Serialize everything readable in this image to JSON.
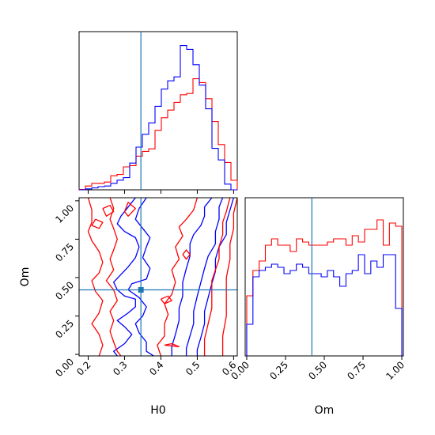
{
  "chart_data": [
    {
      "type": "histogram",
      "panel": "marginal-H0",
      "xlim": [
        0.175,
        0.61
      ],
      "truth": 0.345,
      "bin_edges": [
        0.175,
        0.1924,
        0.2098,
        0.2272,
        0.2446,
        0.262,
        0.2794,
        0.2968,
        0.3142,
        0.3316,
        0.349,
        0.3664,
        0.3838,
        0.4012,
        0.4186,
        0.436,
        0.4534,
        0.4708,
        0.4882,
        0.5056,
        0.523,
        0.5404,
        0.5578,
        0.5752,
        0.5926,
        0.61
      ],
      "series": [
        {
          "color": "#ff0000",
          "counts": [
            0.2,
            2.4,
            4.1,
            4.1,
            4.9,
            8.9,
            9.7,
            14.5,
            15.3,
            21.3,
            24.3,
            25.9,
            37.6,
            45.6,
            50.4,
            55.3,
            60.1,
            60.9,
            70.2,
            67.8,
            57.6,
            43.2,
            28.6,
            17.3,
            6.0
          ],
          "note_scale": "relative"
        },
        {
          "color": "#0000ff",
          "counts": [
            0,
            0.6,
            1.2,
            2.0,
            2.4,
            4.1,
            6.1,
            7.7,
            16.9,
            27.0,
            35.1,
            42.3,
            52.8,
            63.7,
            68.9,
            71.4,
            91.2,
            88.8,
            79.1,
            66.2,
            51.2,
            26.2,
            18.9,
            3.6,
            0
          ],
          "note_scale": "relative"
        }
      ],
      "xticks": [
        "0.2",
        "0.3",
        "0.4",
        "0.5",
        "0.6"
      ]
    },
    {
      "type": "histogram",
      "panel": "marginal-Om",
      "xlim": [
        -0.01,
        1.01
      ],
      "truth": 0.42,
      "bin_edges": [
        0.0,
        0.04,
        0.08,
        0.12,
        0.16,
        0.2,
        0.24,
        0.28,
        0.32,
        0.36,
        0.4,
        0.44,
        0.48,
        0.52,
        0.56,
        0.6,
        0.64,
        0.68,
        0.72,
        0.76,
        0.8,
        0.84,
        0.88,
        0.92,
        0.96,
        1.0
      ],
      "series": [
        {
          "color": "#ff0000",
          "counts": [
            38,
            54,
            60,
            70,
            74,
            70,
            70,
            66,
            74,
            72,
            70,
            70,
            70,
            72,
            74,
            74,
            70,
            76,
            72,
            80,
            80,
            86,
            70,
            84,
            82
          ]
        },
        {
          "color": "#0000ff",
          "counts": [
            20,
            50,
            54,
            56,
            58,
            56,
            52,
            54,
            58,
            56,
            52,
            52,
            50,
            54,
            50,
            44,
            52,
            54,
            64,
            52,
            60,
            56,
            64,
            64,
            30
          ]
        }
      ],
      "ylim": [
        0,
        100
      ],
      "xticks": [
        "0.00",
        "0.25",
        "0.50",
        "0.75",
        "1.00"
      ],
      "xlabel": "Om"
    },
    {
      "type": "contour",
      "panel": "joint-H0-Om",
      "xlim": [
        0.175,
        0.61
      ],
      "ylim": [
        -0.01,
        1.02
      ],
      "truth": {
        "x": 0.345,
        "y": 0.42
      },
      "xticks": [
        "0.2",
        "0.3",
        "0.4",
        "0.5",
        "0.6"
      ],
      "yticks": [
        "0.00",
        "0.25",
        "0.50",
        "0.75",
        "1.00"
      ],
      "xlabel": "H0",
      "ylabel": "Om",
      "series": [
        {
          "color": "#0000ff",
          "contours": [
            [
              [
                0.33,
                1.02
              ],
              [
                0.31,
                0.96
              ],
              [
                0.29,
                0.9
              ],
              [
                0.28,
                0.85
              ],
              [
                0.3,
                0.8
              ],
              [
                0.33,
                0.76
              ],
              [
                0.34,
                0.7
              ],
              [
                0.33,
                0.63
              ],
              [
                0.31,
                0.57
              ],
              [
                0.29,
                0.52
              ],
              [
                0.27,
                0.47
              ],
              [
                0.28,
                0.42
              ],
              [
                0.3,
                0.38
              ],
              [
                0.33,
                0.36
              ],
              [
                0.33,
                0.31
              ],
              [
                0.31,
                0.27
              ],
              [
                0.28,
                0.22
              ],
              [
                0.3,
                0.18
              ],
              [
                0.32,
                0.13
              ],
              [
                0.3,
                0.07
              ],
              [
                0.27,
                0.02
              ],
              [
                0.28,
                -0.01
              ]
            ],
            [
              [
                0.36,
                1.02
              ],
              [
                0.34,
                0.95
              ],
              [
                0.33,
                0.88
              ],
              [
                0.35,
                0.82
              ],
              [
                0.37,
                0.76
              ],
              [
                0.36,
                0.7
              ],
              [
                0.35,
                0.63
              ],
              [
                0.37,
                0.56
              ],
              [
                0.36,
                0.49
              ],
              [
                0.32,
                0.46
              ],
              [
                0.31,
                0.42
              ],
              [
                0.34,
                0.37
              ],
              [
                0.36,
                0.31
              ],
              [
                0.35,
                0.25
              ],
              [
                0.33,
                0.2
              ],
              [
                0.34,
                0.14
              ],
              [
                0.36,
                0.08
              ],
              [
                0.36,
                0.02
              ],
              [
                0.38,
                -0.01
              ]
            ],
            [
              [
                0.54,
                1.02
              ],
              [
                0.52,
                0.96
              ],
              [
                0.52,
                0.9
              ],
              [
                0.51,
                0.84
              ],
              [
                0.49,
                0.78
              ],
              [
                0.48,
                0.72
              ],
              [
                0.48,
                0.64
              ],
              [
                0.47,
                0.56
              ],
              [
                0.46,
                0.47
              ],
              [
                0.46,
                0.38
              ],
              [
                0.45,
                0.3
              ],
              [
                0.45,
                0.22
              ],
              [
                0.44,
                0.13
              ],
              [
                0.43,
                0.05
              ],
              [
                0.43,
                -0.01
              ]
            ],
            [
              [
                0.57,
                1.02
              ],
              [
                0.56,
                0.96
              ],
              [
                0.56,
                0.88
              ],
              [
                0.55,
                0.8
              ],
              [
                0.55,
                0.72
              ],
              [
                0.53,
                0.64
              ],
              [
                0.52,
                0.56
              ],
              [
                0.51,
                0.47
              ],
              [
                0.5,
                0.38
              ],
              [
                0.49,
                0.28
              ],
              [
                0.49,
                0.2
              ],
              [
                0.48,
                0.12
              ],
              [
                0.47,
                0.04
              ],
              [
                0.47,
                -0.01
              ]
            ],
            [
              [
                0.6,
                1.02
              ],
              [
                0.59,
                0.94
              ],
              [
                0.58,
                0.86
              ],
              [
                0.58,
                0.78
              ],
              [
                0.56,
                0.7
              ],
              [
                0.55,
                0.62
              ],
              [
                0.55,
                0.54
              ],
              [
                0.54,
                0.46
              ],
              [
                0.53,
                0.37
              ],
              [
                0.52,
                0.28
              ],
              [
                0.52,
                0.2
              ],
              [
                0.51,
                0.11
              ],
              [
                0.5,
                0.03
              ],
              [
                0.5,
                -0.01
              ]
            ]
          ]
        },
        {
          "color": "#ff0000",
          "contours": [
            [
              [
                0.2,
                1.02
              ],
              [
                0.21,
                0.94
              ],
              [
                0.21,
                0.86
              ],
              [
                0.2,
                0.8
              ],
              [
                0.21,
                0.74
              ],
              [
                0.23,
                0.67
              ],
              [
                0.24,
                0.6
              ],
              [
                0.23,
                0.53
              ],
              [
                0.21,
                0.48
              ],
              [
                0.22,
                0.41
              ],
              [
                0.24,
                0.35
              ],
              [
                0.23,
                0.27
              ],
              [
                0.21,
                0.2
              ],
              [
                0.23,
                0.13
              ],
              [
                0.24,
                0.06
              ],
              [
                0.23,
                -0.01
              ]
            ],
            [
              [
                0.26,
                1.02
              ],
              [
                0.27,
                0.95
              ],
              [
                0.26,
                0.88
              ],
              [
                0.27,
                0.82
              ],
              [
                0.28,
                0.75
              ],
              [
                0.27,
                0.68
              ],
              [
                0.26,
                0.62
              ],
              [
                0.27,
                0.55
              ],
              [
                0.25,
                0.48
              ],
              [
                0.27,
                0.42
              ],
              [
                0.28,
                0.35
              ],
              [
                0.26,
                0.28
              ],
              [
                0.27,
                0.22
              ],
              [
                0.26,
                0.15
              ],
              [
                0.27,
                0.08
              ],
              [
                0.28,
                0.02
              ],
              [
                0.29,
                -0.01
              ]
            ],
            [
              [
                0.24,
                0.95
              ],
              [
                0.26,
                0.97
              ],
              [
                0.27,
                0.93
              ],
              [
                0.25,
                0.9
              ],
              [
                0.24,
                0.95
              ]
            ],
            [
              [
                0.22,
                0.88
              ],
              [
                0.24,
                0.86
              ],
              [
                0.23,
                0.82
              ],
              [
                0.21,
                0.84
              ],
              [
                0.22,
                0.88
              ]
            ],
            [
              [
                0.3,
                0.93
              ],
              [
                0.31,
                0.99
              ],
              [
                0.33,
                0.95
              ],
              [
                0.31,
                0.9
              ],
              [
                0.3,
                0.93
              ]
            ],
            [
              [
                0.5,
                1.02
              ],
              [
                0.49,
                0.94
              ],
              [
                0.47,
                0.88
              ],
              [
                0.45,
                0.83
              ],
              [
                0.46,
                0.77
              ],
              [
                0.44,
                0.7
              ],
              [
                0.45,
                0.62
              ],
              [
                0.43,
                0.55
              ],
              [
                0.44,
                0.47
              ],
              [
                0.43,
                0.39
              ],
              [
                0.41,
                0.33
              ],
              [
                0.42,
                0.26
              ],
              [
                0.41,
                0.2
              ],
              [
                0.41,
                0.12
              ],
              [
                0.39,
                0.06
              ],
              [
                0.4,
                -0.01
              ]
            ],
            [
              [
                0.59,
                1.02
              ],
              [
                0.58,
                0.93
              ],
              [
                0.57,
                0.86
              ],
              [
                0.57,
                0.78
              ],
              [
                0.56,
                0.7
              ],
              [
                0.56,
                0.62
              ],
              [
                0.55,
                0.55
              ],
              [
                0.54,
                0.48
              ],
              [
                0.54,
                0.4
              ],
              [
                0.54,
                0.3
              ],
              [
                0.53,
                0.2
              ],
              [
                0.52,
                0.1
              ],
              [
                0.52,
                -0.01
              ]
            ],
            [
              [
                0.61,
                1.02
              ],
              [
                0.6,
                0.92
              ],
              [
                0.6,
                0.82
              ],
              [
                0.59,
                0.72
              ],
              [
                0.59,
                0.62
              ],
              [
                0.58,
                0.5
              ],
              [
                0.58,
                0.38
              ],
              [
                0.58,
                0.25
              ],
              [
                0.57,
                0.12
              ],
              [
                0.57,
                -0.01
              ]
            ],
            [
              [
                0.46,
                0.65
              ],
              [
                0.47,
                0.68
              ],
              [
                0.48,
                0.65
              ],
              [
                0.47,
                0.62
              ],
              [
                0.46,
                0.65
              ]
            ],
            [
              [
                0.4,
                0.36
              ],
              [
                0.42,
                0.38
              ],
              [
                0.43,
                0.35
              ],
              [
                0.41,
                0.33
              ],
              [
                0.4,
                0.36
              ]
            ],
            [
              [
                0.41,
                0.06
              ],
              [
                0.43,
                0.07
              ],
              [
                0.45,
                0.05
              ],
              [
                0.41,
                0.06
              ]
            ]
          ]
        }
      ]
    }
  ]
}
